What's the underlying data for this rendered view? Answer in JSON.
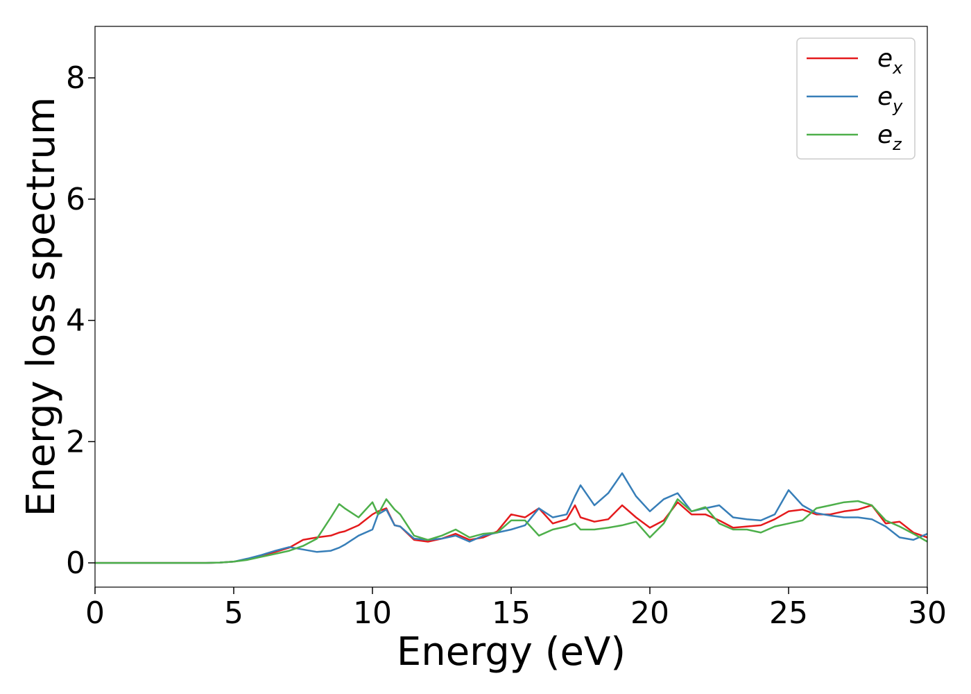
{
  "chart_data": {
    "type": "line",
    "title": "",
    "xlabel": "Energy (eV)",
    "ylabel": "Energy loss spectrum",
    "xlim": [
      0,
      30
    ],
    "ylim": [
      -0.4,
      8.85
    ],
    "xticks": [
      0,
      5,
      10,
      15,
      20,
      25,
      30
    ],
    "yticks": [
      0,
      2,
      4,
      6,
      8
    ],
    "grid": false,
    "legend_position": "top-right",
    "legend_entries": [
      {
        "base": "e",
        "sub": "x"
      },
      {
        "base": "e",
        "sub": "y"
      },
      {
        "base": "e",
        "sub": "z"
      }
    ],
    "x": [
      0,
      1,
      2,
      3,
      4,
      4.5,
      5,
      5.5,
      6,
      6.5,
      7,
      7.5,
      8,
      8.5,
      8.8,
      9,
      9.5,
      10,
      10.2,
      10.5,
      10.8,
      11,
      11.5,
      12,
      12.5,
      13,
      13.5,
      14,
      14.5,
      15,
      15.5,
      16,
      16.5,
      17,
      17.3,
      17.5,
      18,
      18.5,
      19,
      19.5,
      20,
      20.5,
      21,
      21.5,
      22,
      22.5,
      23,
      23.5,
      24,
      24.5,
      25,
      25.5,
      26,
      26.5,
      27,
      27.5,
      28,
      28.5,
      29,
      29.5,
      30
    ],
    "series": [
      {
        "name": "ex",
        "color": "#e41a1c",
        "values": [
          0,
          0,
          0,
          0,
          0,
          0.005,
          0.02,
          0.06,
          0.12,
          0.18,
          0.25,
          0.38,
          0.42,
          0.45,
          0.5,
          0.52,
          0.62,
          0.8,
          0.85,
          0.9,
          0.62,
          0.6,
          0.38,
          0.35,
          0.4,
          0.48,
          0.38,
          0.42,
          0.52,
          0.8,
          0.75,
          0.9,
          0.65,
          0.72,
          0.95,
          0.75,
          0.68,
          0.72,
          0.95,
          0.75,
          0.58,
          0.7,
          1.0,
          0.8,
          0.8,
          0.7,
          0.58,
          0.6,
          0.62,
          0.72,
          0.85,
          0.88,
          0.8,
          0.8,
          0.85,
          0.88,
          0.95,
          0.65,
          0.68,
          0.5,
          0.42
        ]
      },
      {
        "name": "ey",
        "color": "#377eb8",
        "values": [
          0,
          0,
          0,
          0,
          0,
          0.005,
          0.02,
          0.07,
          0.13,
          0.2,
          0.26,
          0.22,
          0.18,
          0.2,
          0.25,
          0.3,
          0.45,
          0.55,
          0.8,
          0.88,
          0.62,
          0.6,
          0.4,
          0.38,
          0.4,
          0.45,
          0.35,
          0.45,
          0.5,
          0.55,
          0.62,
          0.9,
          0.75,
          0.8,
          1.1,
          1.28,
          0.95,
          1.15,
          1.48,
          1.1,
          0.85,
          1.05,
          1.15,
          0.85,
          0.9,
          0.95,
          0.75,
          0.72,
          0.7,
          0.8,
          1.2,
          0.95,
          0.82,
          0.78,
          0.75,
          0.75,
          0.72,
          0.6,
          0.42,
          0.38,
          0.48
        ]
      },
      {
        "name": "ez",
        "color": "#4daf4a",
        "values": [
          0,
          0,
          0,
          0,
          0,
          0.005,
          0.02,
          0.05,
          0.1,
          0.15,
          0.2,
          0.28,
          0.4,
          0.75,
          0.97,
          0.9,
          0.75,
          1.0,
          0.8,
          1.05,
          0.88,
          0.8,
          0.45,
          0.38,
          0.45,
          0.55,
          0.42,
          0.48,
          0.5,
          0.7,
          0.7,
          0.45,
          0.55,
          0.6,
          0.65,
          0.55,
          0.55,
          0.58,
          0.62,
          0.68,
          0.42,
          0.65,
          1.05,
          0.85,
          0.92,
          0.65,
          0.55,
          0.55,
          0.5,
          0.6,
          0.65,
          0.7,
          0.9,
          0.95,
          1.0,
          1.02,
          0.95,
          0.7,
          0.6,
          0.48,
          0.35
        ]
      }
    ]
  }
}
